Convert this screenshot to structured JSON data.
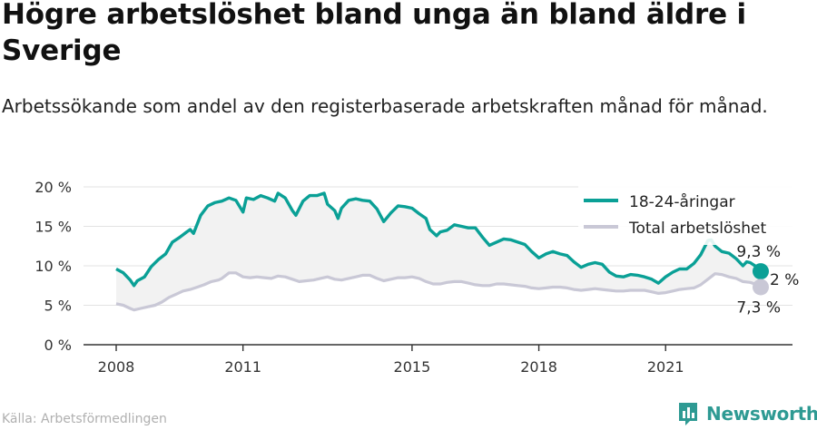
{
  "header": {
    "title": "Högre arbetslöshet bland unga än bland äldre i Sverige",
    "subtitle": "Arbetssökande som andel av den registerbaserade arbetskraften månad för månad."
  },
  "footer": {
    "source": "Källa: Arbetsförmedlingen",
    "brand": "Newsworthy"
  },
  "colors": {
    "youth": "#0aa096",
    "total": "#c9c8d6",
    "band": "#f2f2f2",
    "grid": "#e3e3e3",
    "brand": "#2e9a93"
  },
  "chart_data": {
    "type": "line",
    "title": "Högre arbetslöshet bland unga än bland äldre i Sverige",
    "xlabel": "",
    "ylabel": "",
    "ylim": [
      0,
      20
    ],
    "xlim": [
      2008,
      2022.9
    ],
    "y_ticks": [
      0,
      5,
      10,
      15,
      20
    ],
    "y_tick_labels": [
      "0 %",
      "5 %",
      "10 %",
      "15 %",
      "20 %"
    ],
    "x_ticks": [
      2008,
      2011,
      2015,
      2018,
      2021
    ],
    "x_tick_labels": [
      "2008",
      "2011",
      "2015",
      "2018",
      "2021"
    ],
    "grid": true,
    "legend_position": "top-right",
    "series": [
      {
        "name": "18-24-åringar",
        "color": "#0aa096",
        "end_label": "9,3 %",
        "points": [
          [
            2008.0,
            9.6
          ],
          [
            2008.17,
            9.1
          ],
          [
            2008.33,
            8.2
          ],
          [
            2008.42,
            7.5
          ],
          [
            2008.5,
            8.1
          ],
          [
            2008.67,
            8.6
          ],
          [
            2008.83,
            9.9
          ],
          [
            2009.0,
            10.8
          ],
          [
            2009.17,
            11.5
          ],
          [
            2009.33,
            13.0
          ],
          [
            2009.5,
            13.6
          ],
          [
            2009.67,
            14.3
          ],
          [
            2009.75,
            14.6
          ],
          [
            2009.83,
            14.1
          ],
          [
            2010.0,
            16.4
          ],
          [
            2010.17,
            17.6
          ],
          [
            2010.33,
            18.0
          ],
          [
            2010.5,
            18.2
          ],
          [
            2010.67,
            18.6
          ],
          [
            2010.83,
            18.3
          ],
          [
            2011.0,
            16.8
          ],
          [
            2011.08,
            18.6
          ],
          [
            2011.25,
            18.4
          ],
          [
            2011.42,
            18.9
          ],
          [
            2011.58,
            18.6
          ],
          [
            2011.75,
            18.2
          ],
          [
            2011.83,
            19.2
          ],
          [
            2012.0,
            18.6
          ],
          [
            2012.17,
            17.0
          ],
          [
            2012.25,
            16.4
          ],
          [
            2012.42,
            18.2
          ],
          [
            2012.58,
            18.9
          ],
          [
            2012.75,
            18.9
          ],
          [
            2012.92,
            19.2
          ],
          [
            2013.0,
            17.8
          ],
          [
            2013.17,
            17.0
          ],
          [
            2013.25,
            16.0
          ],
          [
            2013.33,
            17.3
          ],
          [
            2013.5,
            18.3
          ],
          [
            2013.67,
            18.5
          ],
          [
            2013.83,
            18.3
          ],
          [
            2014.0,
            18.2
          ],
          [
            2014.17,
            17.2
          ],
          [
            2014.33,
            15.6
          ],
          [
            2014.5,
            16.7
          ],
          [
            2014.67,
            17.6
          ],
          [
            2014.83,
            17.5
          ],
          [
            2015.0,
            17.3
          ],
          [
            2015.17,
            16.6
          ],
          [
            2015.33,
            16.0
          ],
          [
            2015.42,
            14.6
          ],
          [
            2015.58,
            13.8
          ],
          [
            2015.67,
            14.3
          ],
          [
            2015.83,
            14.5
          ],
          [
            2016.0,
            15.2
          ],
          [
            2016.17,
            15.0
          ],
          [
            2016.33,
            14.8
          ],
          [
            2016.5,
            14.8
          ],
          [
            2016.67,
            13.6
          ],
          [
            2016.83,
            12.6
          ],
          [
            2017.0,
            13.0
          ],
          [
            2017.17,
            13.4
          ],
          [
            2017.33,
            13.3
          ],
          [
            2017.5,
            13.0
          ],
          [
            2017.67,
            12.7
          ],
          [
            2017.83,
            11.8
          ],
          [
            2018.0,
            11.0
          ],
          [
            2018.17,
            11.5
          ],
          [
            2018.33,
            11.8
          ],
          [
            2018.5,
            11.5
          ],
          [
            2018.67,
            11.3
          ],
          [
            2018.83,
            10.5
          ],
          [
            2019.0,
            9.8
          ],
          [
            2019.17,
            10.2
          ],
          [
            2019.33,
            10.4
          ],
          [
            2019.5,
            10.2
          ],
          [
            2019.67,
            9.2
          ],
          [
            2019.83,
            8.7
          ],
          [
            2020.0,
            8.6
          ],
          [
            2020.17,
            8.9
          ],
          [
            2020.33,
            8.8
          ],
          [
            2020.5,
            8.6
          ],
          [
            2020.67,
            8.3
          ],
          [
            2020.83,
            7.8
          ],
          [
            2021.0,
            8.6
          ],
          [
            2021.17,
            9.2
          ],
          [
            2021.33,
            9.6
          ],
          [
            2021.5,
            9.6
          ],
          [
            2021.67,
            10.3
          ],
          [
            2021.83,
            11.4
          ],
          [
            2022.0,
            13.2
          ],
          [
            2022.08,
            13.3
          ],
          [
            2022.17,
            12.5
          ],
          [
            2022.33,
            11.8
          ],
          [
            2022.5,
            11.6
          ],
          [
            2022.67,
            10.9
          ],
          [
            2022.83,
            10.0
          ],
          [
            2022.92,
            10.5
          ],
          [
            2023.0,
            10.4
          ],
          [
            2023.17,
            9.8
          ],
          [
            2023.25,
            9.3
          ]
        ]
      },
      {
        "name": "Total arbetslöshet",
        "color": "#c9c8d6",
        "end_label": "7,3 %",
        "points": [
          [
            2008.0,
            5.2
          ],
          [
            2008.17,
            5.0
          ],
          [
            2008.33,
            4.6
          ],
          [
            2008.42,
            4.4
          ],
          [
            2008.58,
            4.6
          ],
          [
            2008.75,
            4.8
          ],
          [
            2008.92,
            5.0
          ],
          [
            2009.08,
            5.4
          ],
          [
            2009.25,
            6.0
          ],
          [
            2009.42,
            6.4
          ],
          [
            2009.58,
            6.8
          ],
          [
            2009.75,
            7.0
          ],
          [
            2009.92,
            7.3
          ],
          [
            2010.08,
            7.6
          ],
          [
            2010.25,
            8.0
          ],
          [
            2010.42,
            8.2
          ],
          [
            2010.5,
            8.4
          ],
          [
            2010.67,
            9.1
          ],
          [
            2010.83,
            9.1
          ],
          [
            2011.0,
            8.6
          ],
          [
            2011.17,
            8.5
          ],
          [
            2011.33,
            8.6
          ],
          [
            2011.5,
            8.5
          ],
          [
            2011.67,
            8.4
          ],
          [
            2011.83,
            8.7
          ],
          [
            2012.0,
            8.6
          ],
          [
            2012.17,
            8.3
          ],
          [
            2012.33,
            8.0
          ],
          [
            2012.5,
            8.1
          ],
          [
            2012.67,
            8.2
          ],
          [
            2012.83,
            8.4
          ],
          [
            2013.0,
            8.6
          ],
          [
            2013.17,
            8.3
          ],
          [
            2013.33,
            8.2
          ],
          [
            2013.5,
            8.4
          ],
          [
            2013.67,
            8.6
          ],
          [
            2013.83,
            8.8
          ],
          [
            2014.0,
            8.8
          ],
          [
            2014.17,
            8.4
          ],
          [
            2014.33,
            8.1
          ],
          [
            2014.5,
            8.3
          ],
          [
            2014.67,
            8.5
          ],
          [
            2014.83,
            8.5
          ],
          [
            2015.0,
            8.6
          ],
          [
            2015.17,
            8.4
          ],
          [
            2015.33,
            8.0
          ],
          [
            2015.5,
            7.7
          ],
          [
            2015.67,
            7.7
          ],
          [
            2015.83,
            7.9
          ],
          [
            2016.0,
            8.0
          ],
          [
            2016.17,
            8.0
          ],
          [
            2016.33,
            7.8
          ],
          [
            2016.5,
            7.6
          ],
          [
            2016.67,
            7.5
          ],
          [
            2016.83,
            7.5
          ],
          [
            2017.0,
            7.7
          ],
          [
            2017.17,
            7.7
          ],
          [
            2017.33,
            7.6
          ],
          [
            2017.5,
            7.5
          ],
          [
            2017.67,
            7.4
          ],
          [
            2017.83,
            7.2
          ],
          [
            2018.0,
            7.1
          ],
          [
            2018.17,
            7.2
          ],
          [
            2018.33,
            7.3
          ],
          [
            2018.5,
            7.3
          ],
          [
            2018.67,
            7.2
          ],
          [
            2018.83,
            7.0
          ],
          [
            2019.0,
            6.9
          ],
          [
            2019.17,
            7.0
          ],
          [
            2019.33,
            7.1
          ],
          [
            2019.5,
            7.0
          ],
          [
            2019.67,
            6.9
          ],
          [
            2019.83,
            6.8
          ],
          [
            2020.0,
            6.8
          ],
          [
            2020.17,
            6.9
          ],
          [
            2020.33,
            6.9
          ],
          [
            2020.5,
            6.9
          ],
          [
            2020.67,
            6.7
          ],
          [
            2020.83,
            6.5
          ],
          [
            2021.0,
            6.6
          ],
          [
            2021.17,
            6.8
          ],
          [
            2021.33,
            7.0
          ],
          [
            2021.5,
            7.1
          ],
          [
            2021.67,
            7.2
          ],
          [
            2021.83,
            7.6
          ],
          [
            2022.0,
            8.3
          ],
          [
            2022.17,
            9.0
          ],
          [
            2022.33,
            8.9
          ],
          [
            2022.5,
            8.6
          ],
          [
            2022.67,
            8.4
          ],
          [
            2022.83,
            8.0
          ],
          [
            2023.0,
            7.9
          ],
          [
            2023.17,
            7.6
          ],
          [
            2023.25,
            7.3
          ]
        ]
      }
    ],
    "annotations": [
      {
        "text": "2 %",
        "meaning": "difference between series at end"
      }
    ]
  }
}
